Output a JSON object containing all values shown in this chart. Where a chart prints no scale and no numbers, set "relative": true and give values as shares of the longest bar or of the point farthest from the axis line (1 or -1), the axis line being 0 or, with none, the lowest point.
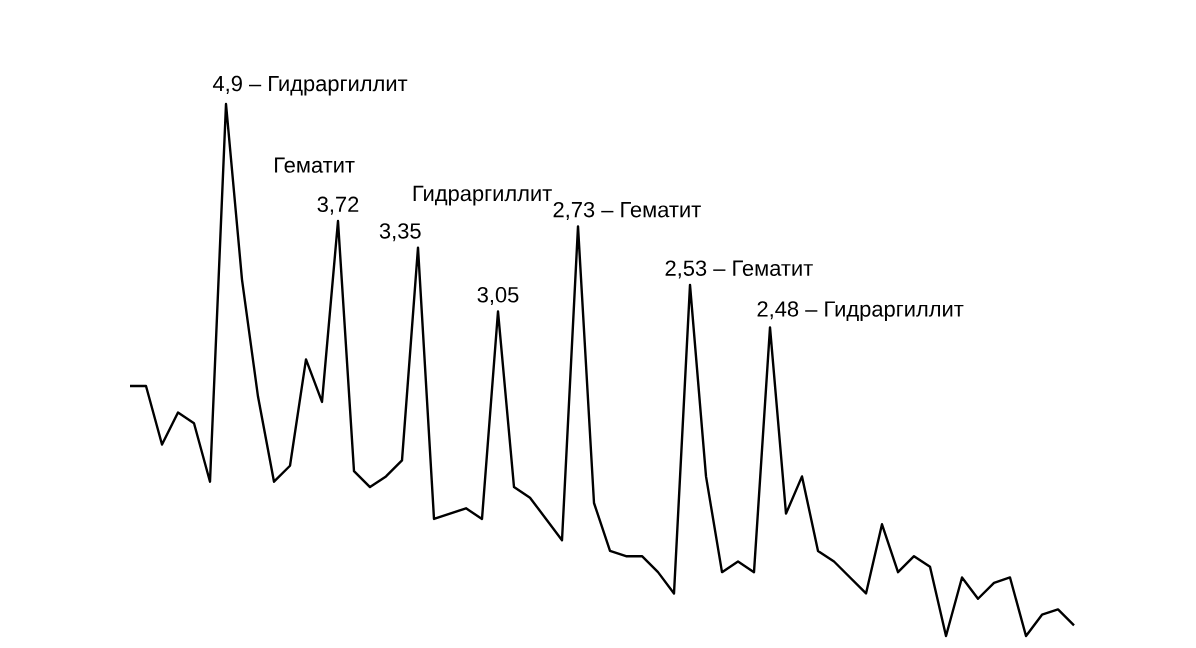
{
  "chart_data": {
    "type": "line",
    "relative": true,
    "color": "#000000",
    "categories": [
      null,
      null,
      null,
      null,
      null,
      null,
      null,
      null,
      null,
      null,
      null,
      null,
      null,
      null,
      null,
      null,
      null,
      null,
      null,
      null,
      null,
      null,
      null,
      null,
      null,
      null,
      null,
      null,
      null,
      null,
      null,
      null,
      null,
      null,
      null,
      null,
      null,
      null,
      null,
      null,
      null,
      null,
      null,
      null,
      null,
      null,
      null,
      null,
      null,
      null,
      null,
      null,
      null,
      null,
      null,
      null,
      null,
      null,
      null,
      null
    ],
    "values": [
      0.47,
      0.47,
      0.36,
      0.42,
      0.4,
      0.29,
      1.0,
      0.67,
      0.45,
      0.29,
      0.32,
      0.52,
      0.44,
      0.78,
      0.31,
      0.28,
      0.3,
      0.33,
      0.73,
      0.22,
      0.23,
      0.24,
      0.22,
      0.61,
      0.28,
      0.26,
      0.22,
      0.18,
      0.77,
      0.25,
      0.16,
      0.15,
      0.15,
      0.12,
      0.08,
      0.66,
      0.3,
      0.12,
      0.14,
      0.12,
      0.58,
      0.23,
      0.3,
      0.16,
      0.14,
      0.11,
      0.08,
      0.21,
      0.12,
      0.15,
      0.13,
      0.0,
      0.11,
      0.07,
      0.1,
      0.11,
      0.0,
      0.04,
      0.05,
      0.02
    ],
    "annotations": [
      "4,9 – Гидраргиллит",
      "3,72",
      "Гематит",
      "3,35",
      "3,05",
      "Гидраргиллит",
      "2,73 – Гематит",
      "2,53 – Гематит",
      "2,48 – Гидраргиллит"
    ]
  }
}
